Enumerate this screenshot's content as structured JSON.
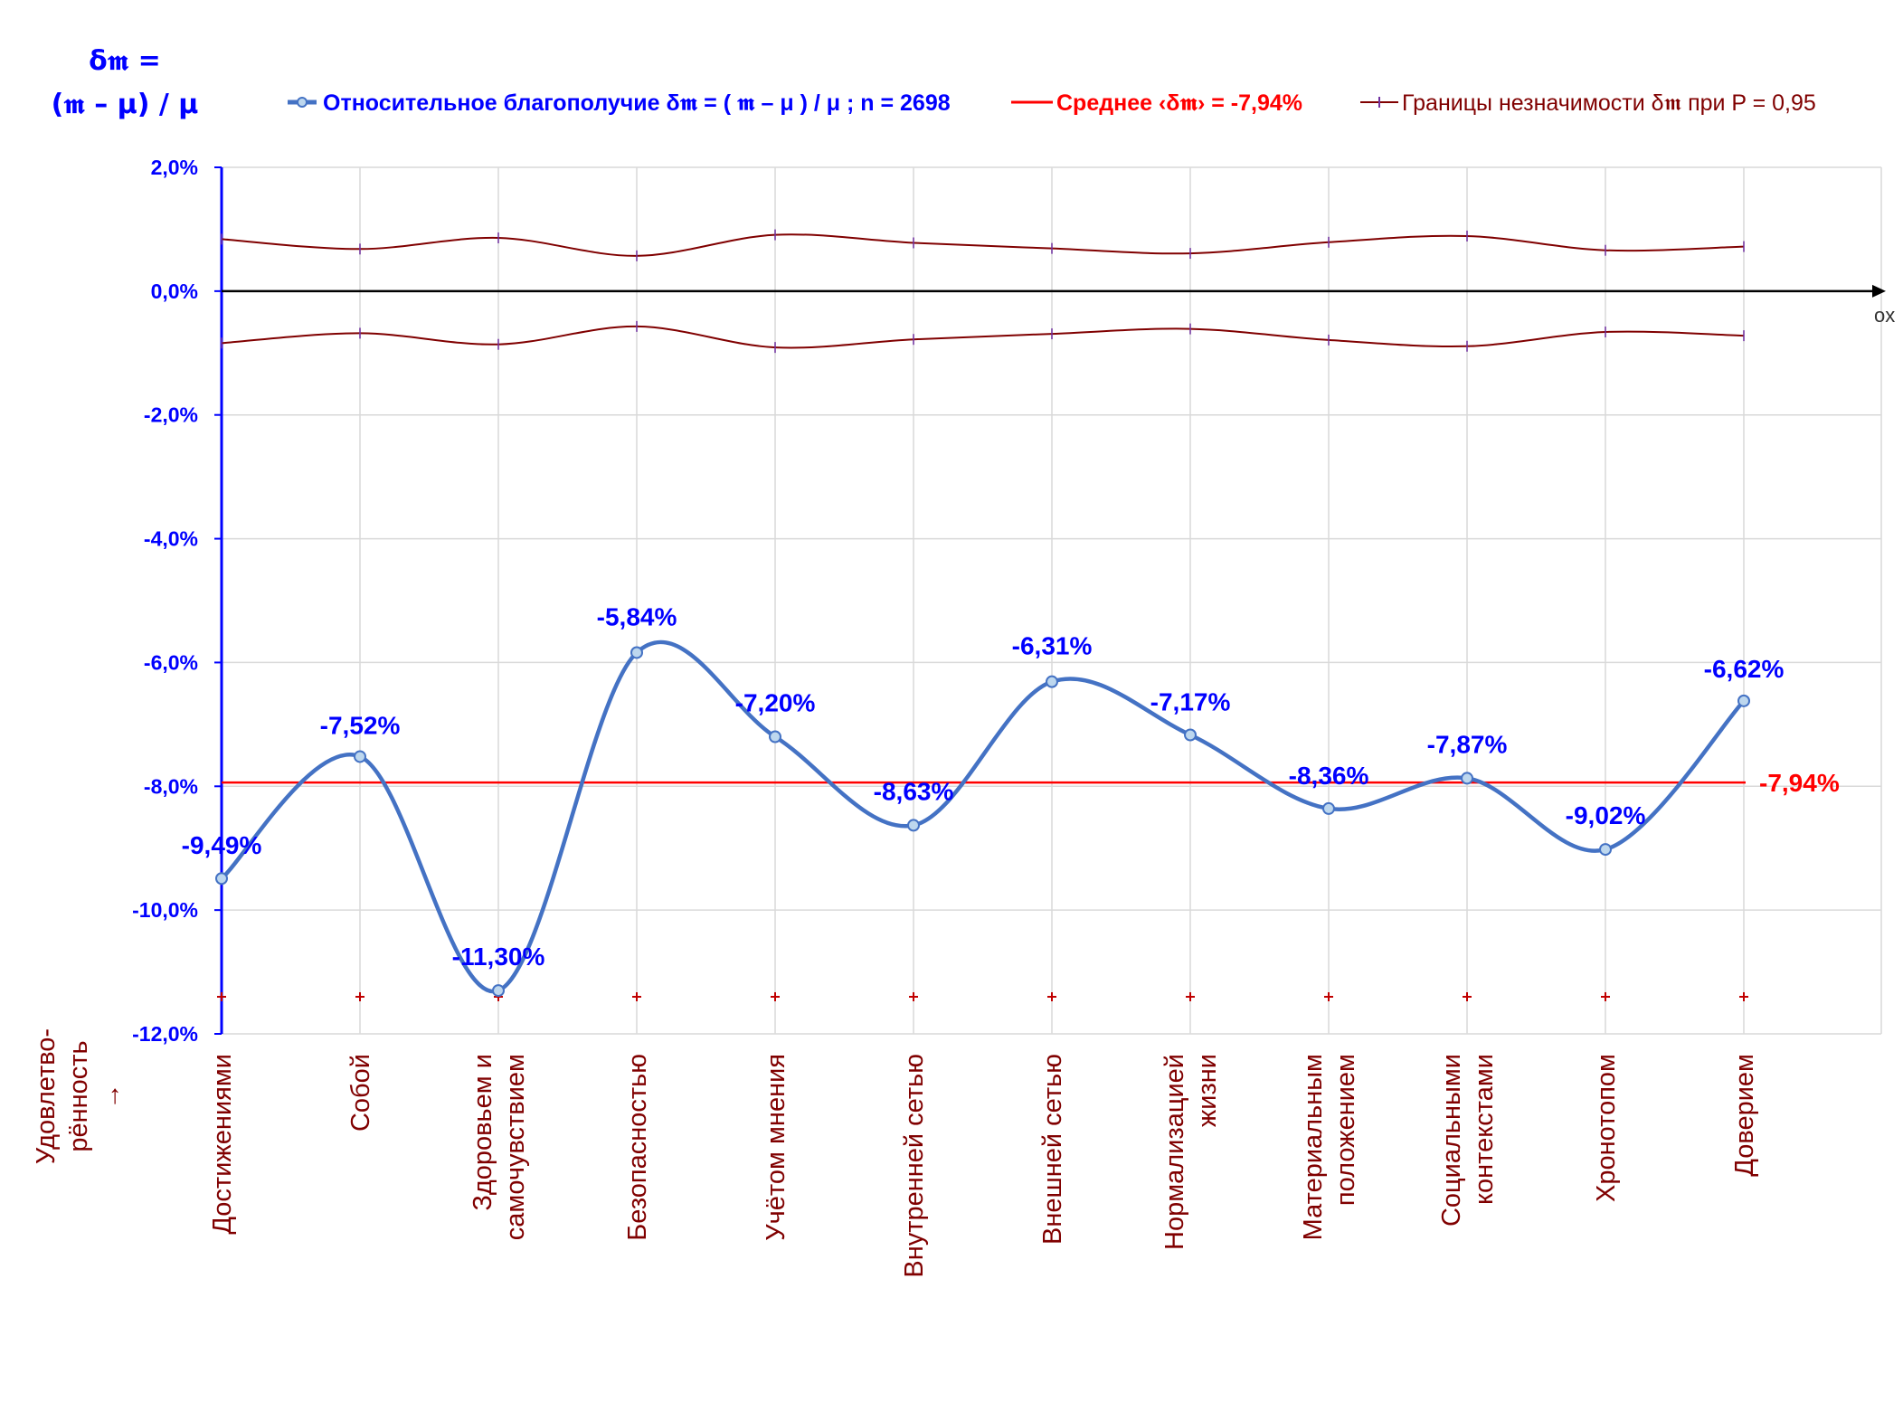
{
  "chart_data": {
    "type": "line",
    "ylabel_line1": "δ𝖒 =",
    "ylabel_line2": "(𝖒 – μ) / μ",
    "x_axis_name": "ox",
    "ylim": [
      -12,
      2
    ],
    "yticks": [
      2,
      0,
      -2,
      -4,
      -6,
      -8,
      -10,
      -12
    ],
    "ytick_labels": [
      "2,0%",
      "0,0%",
      "-2,0%",
      "-4,0%",
      "-6,0%",
      "-8,0%",
      "-10,0%",
      "-12,0%"
    ],
    "categories": [
      [
        "Достижениями"
      ],
      [
        "Собой"
      ],
      [
        "Здоровьем и",
        "самочувствием"
      ],
      [
        "Безопасностью"
      ],
      [
        "Учётом мнения"
      ],
      [
        "Внутренней сетью"
      ],
      [
        "Внешней сетью"
      ],
      [
        "Нормализацией",
        "жизни"
      ],
      [
        "Материальным",
        "положением"
      ],
      [
        "Социальными",
        "контекстами"
      ],
      [
        "Хронотопом"
      ],
      [
        "Доверием"
      ]
    ],
    "corner_label": [
      "Удовлетво-",
      "рённость",
      "→"
    ],
    "series": [
      {
        "name": "Относительное благополучие δ𝖒 = ( 𝖒 – μ ) / μ ; n = 2698",
        "values": [
          -9.49,
          -7.52,
          -11.3,
          -5.84,
          -7.2,
          -8.63,
          -6.31,
          -7.17,
          -8.36,
          -7.87,
          -9.02,
          -6.62
        ],
        "labels": [
          "-9,49%",
          "-7,52%",
          "-11,30%",
          "-5,84%",
          "-7,20%",
          "-8,63%",
          "-6,31%",
          "-7,17%",
          "-8,36%",
          "-7,87%",
          "-9,02%",
          "-6,62%"
        ],
        "color": "#4472c4"
      },
      {
        "name": "Среднее ‹δ𝖒› = -7,94%",
        "value": -7.94,
        "label": "-7,94%",
        "color": "#ff0000"
      },
      {
        "name": "Границы незначимости δ𝖒 при P = 0,95",
        "upper": [
          0.84,
          0.68,
          0.86,
          0.57,
          0.91,
          0.78,
          0.69,
          0.61,
          0.79,
          0.89,
          0.66,
          0.72
        ],
        "lower": [
          -0.84,
          -0.68,
          -0.86,
          -0.57,
          -0.91,
          -0.78,
          -0.69,
          -0.61,
          -0.79,
          -0.89,
          -0.66,
          -0.72
        ],
        "marker_row_value": -11.4,
        "color": "#800000"
      }
    ],
    "grid": true,
    "legend_position": "top"
  },
  "colors": {
    "series_line": "#4472c4",
    "label_text": "#0000ff",
    "mean": "#ff0000",
    "bounds": "#800000",
    "grid": "#d9d9d9",
    "marker_fill": "#bdd7ee"
  }
}
